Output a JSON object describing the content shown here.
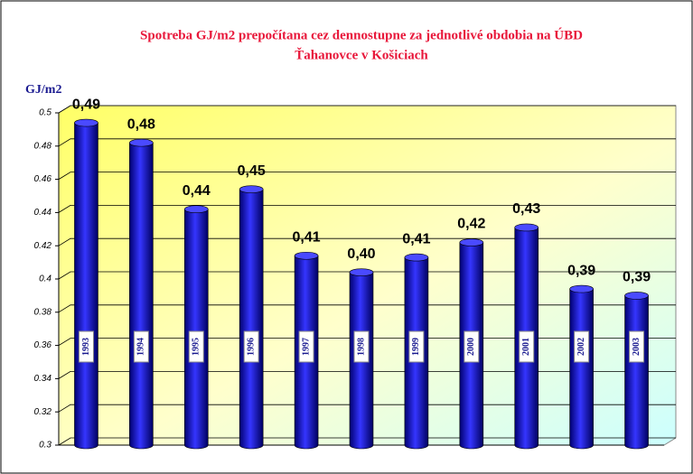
{
  "chart_data": {
    "type": "bar",
    "title": "Spotreba GJ/m2 prepočítana cez dennostupne za jednotlivé obdobia na ÚBD",
    "subtitle": "Ťahanovce v Košiciach",
    "y_label": "GJ/m2",
    "categories": [
      "1993",
      "1994",
      "1995",
      "1996",
      "1997",
      "1998",
      "1999",
      "2000",
      "2001",
      "2002",
      "2003"
    ],
    "values": [
      0.494,
      0.482,
      0.442,
      0.454,
      0.414,
      0.404,
      0.413,
      0.422,
      0.431,
      0.394,
      0.39
    ],
    "value_labels": [
      "0,49",
      "0,48",
      "0,44",
      "0,45",
      "0,41",
      "0,40",
      "0,41",
      "0,42",
      "0,43",
      "0,39",
      "0,39"
    ],
    "color": "#1a1ad0",
    "ylim": [
      0.3,
      0.5
    ],
    "yticks": [
      0.3,
      0.32,
      0.34,
      0.36,
      0.38,
      0.4,
      0.42,
      0.44,
      0.46,
      0.48,
      0.5
    ],
    "grid": true
  }
}
